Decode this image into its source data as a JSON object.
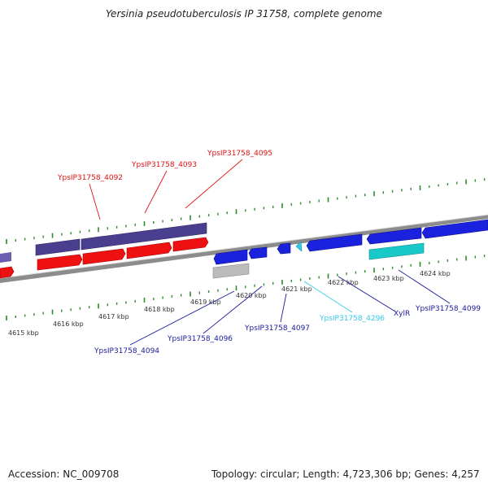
{
  "title": "Yersinia pseudotuberculosis IP 31758, complete genome",
  "footer": {
    "accession": "Accession: NC_009708",
    "topology": "Topology: circular; Length: 4,723,306 bp; Genes: 4,257"
  },
  "colors": {
    "backbone": "#8c8c8c",
    "tick": "#2e8b2e",
    "red_gene": "#ee1111",
    "purple_gene": "#4a3f8f",
    "blue_gene": "#1a22dd",
    "cyan_gene": "#19c8c8",
    "light_cyan_gene": "#33c9e8",
    "gray_gene": "#bbbbbb"
  },
  "coordinate_labels": [
    "4615 kbp",
    "4616 kbp",
    "4617 kbp",
    "4618 kbp",
    "4619 kbp",
    "4620 kbp",
    "4621 kbp",
    "4622 kbp",
    "4623 kbp",
    "4624 kbp"
  ],
  "gene_labels": [
    {
      "text": "YpsIP31758_4092",
      "color": "#dd1111"
    },
    {
      "text": "YpsIP31758_4093",
      "color": "#dd1111"
    },
    {
      "text": "YpsIP31758_4095",
      "color": "#dd1111"
    },
    {
      "text": "YpsIP31758_4094",
      "color": "#1a1a99"
    },
    {
      "text": "YpsIP31758_4096",
      "color": "#1a1a99"
    },
    {
      "text": "YpsIP31758_4097",
      "color": "#1a1a99"
    },
    {
      "text": "YpsIP31758_4296",
      "color": "#33c9e8"
    },
    {
      "text": "XylR",
      "color": "#1a1a99"
    },
    {
      "text": "YpsIP31758_4099",
      "color": "#1a1a99"
    }
  ]
}
